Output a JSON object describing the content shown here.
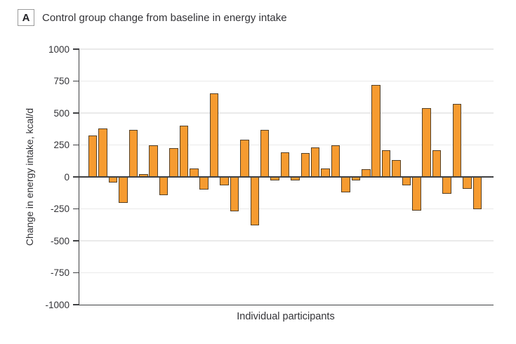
{
  "panel": {
    "label": "A",
    "title": "Control group change from baseline in energy intake"
  },
  "chart_data": {
    "type": "bar",
    "title": "Control group change from baseline in energy intake",
    "xlabel": "Individual participants",
    "ylabel": "Change in energy intake, kcal/d",
    "ylim": [
      -1000,
      1000
    ],
    "yticks": [
      1000,
      750,
      500,
      250,
      0,
      -250,
      -500,
      -750,
      -1000
    ],
    "grid": true,
    "legend_position": "none",
    "n_bars": 39,
    "values": [
      325,
      380,
      -45,
      -205,
      370,
      20,
      250,
      -145,
      225,
      400,
      65,
      -100,
      655,
      -65,
      -270,
      290,
      -380,
      370,
      -30,
      190,
      -25,
      185,
      230,
      65,
      245,
      -120,
      -30,
      60,
      720,
      210,
      130,
      -65,
      -265,
      540,
      210,
      -130,
      570,
      -95,
      -255
    ],
    "bar_fill": "#F69B30",
    "bar_border": "#554128"
  },
  "colors": {
    "background": "#FFFFFF",
    "axis": "#3F4043",
    "gridline": "#EAEAEA",
    "text": "#333337"
  }
}
